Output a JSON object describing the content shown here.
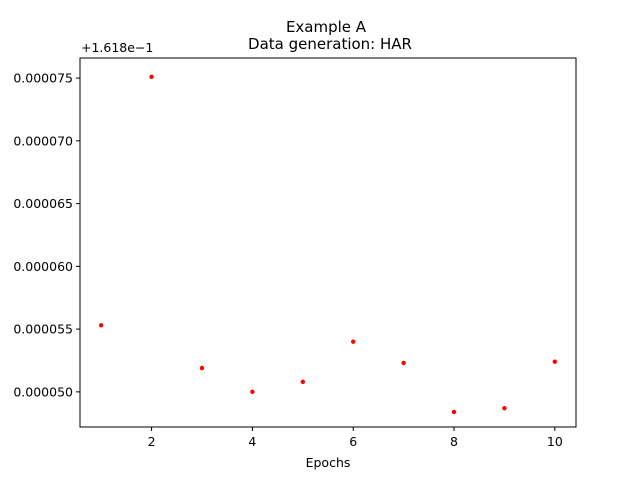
{
  "chart_data": {
    "type": "scatter",
    "title": "Example A",
    "subtitle": "Data generation: HAR",
    "xlabel": "Epochs",
    "ylabel": "",
    "y_offset_label": "+1.618e−1",
    "xlim": [
      0.58,
      10.42
    ],
    "ylim": [
      4.72e-05,
      7.66e-05
    ],
    "x_ticks": [
      2,
      4,
      6,
      8,
      10
    ],
    "x_tick_labels": [
      "2",
      "4",
      "6",
      "8",
      "10"
    ],
    "y_ticks": [
      5e-05,
      5.5e-05,
      6e-05,
      6.5e-05,
      7e-05,
      7.5e-05
    ],
    "y_tick_labels": [
      "0.000050",
      "0.000055",
      "0.000060",
      "0.000065",
      "0.000070",
      "0.000075"
    ],
    "grid": false,
    "marker_color": "#ff0000",
    "series": [
      {
        "x": [
          1,
          2,
          3,
          4,
          5,
          6,
          7,
          8,
          9,
          10
        ],
        "y": [
          5.53e-05,
          7.51e-05,
          5.19e-05,
          5e-05,
          5.08e-05,
          5.4e-05,
          5.23e-05,
          4.84e-05,
          4.87e-05,
          5.24e-05
        ]
      }
    ]
  }
}
